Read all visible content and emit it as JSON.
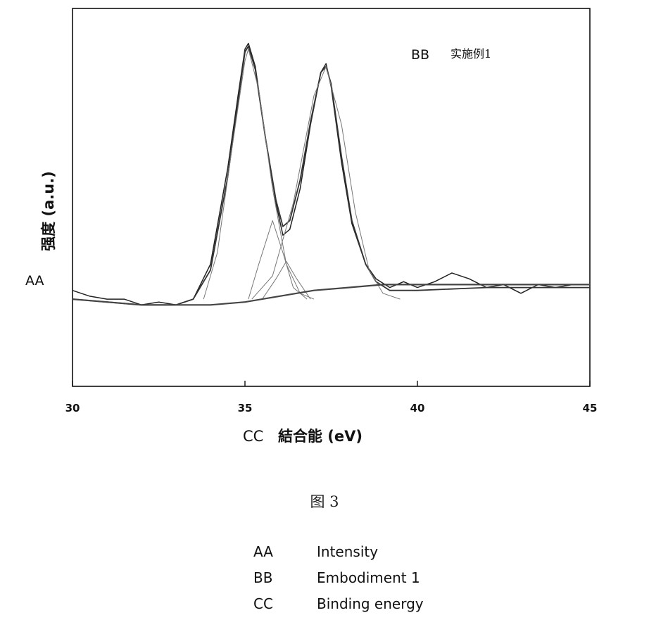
{
  "chart_data": {
    "type": "line",
    "x_axis": {
      "label_code": "CC",
      "label": "結合能 (eV)",
      "ticks": [
        30,
        35,
        40,
        45
      ],
      "range": [
        30,
        45
      ]
    },
    "y_axis": {
      "label_code": "AA",
      "label": "强度 (a.u.)",
      "ticks": []
    },
    "legend": {
      "code": "BB",
      "text": "实施例1",
      "placement": "top-right"
    },
    "series": [
      {
        "role": "measured",
        "x": [
          30,
          30.5,
          31,
          31.5,
          32,
          32.5,
          33,
          33.5,
          34,
          34.5,
          34.8,
          35.0,
          35.1,
          35.3,
          35.6,
          35.9,
          36.1,
          36.3,
          36.6,
          36.9,
          37.2,
          37.35,
          37.5,
          37.8,
          38.1,
          38.5,
          38.8,
          39.2,
          39.6,
          40.0,
          40.5,
          41.0,
          41.5,
          42.0,
          42.5,
          43.0,
          43.5,
          44.0,
          44.5,
          45.0
        ],
        "y": [
          0.03,
          0.01,
          0.0,
          0.0,
          -0.02,
          -0.01,
          -0.02,
          0.0,
          0.12,
          0.45,
          0.7,
          0.86,
          0.88,
          0.8,
          0.55,
          0.33,
          0.22,
          0.24,
          0.38,
          0.6,
          0.78,
          0.81,
          0.73,
          0.47,
          0.26,
          0.12,
          0.07,
          0.04,
          0.06,
          0.04,
          0.06,
          0.09,
          0.07,
          0.04,
          0.05,
          0.02,
          0.05,
          0.04,
          0.05,
          0.05
        ]
      },
      {
        "role": "fit",
        "x": [
          30,
          31,
          32,
          33,
          33.5,
          34,
          34.5,
          34.8,
          35.0,
          35.1,
          35.3,
          35.6,
          35.9,
          36.1,
          36.3,
          36.6,
          36.9,
          37.2,
          37.35,
          37.5,
          37.8,
          38.1,
          38.5,
          38.8,
          39.2,
          40,
          42,
          45
        ],
        "y": [
          0.0,
          -0.01,
          -0.02,
          -0.02,
          0.0,
          0.1,
          0.42,
          0.68,
          0.85,
          0.87,
          0.79,
          0.55,
          0.34,
          0.25,
          0.27,
          0.41,
          0.61,
          0.78,
          0.8,
          0.74,
          0.49,
          0.27,
          0.12,
          0.06,
          0.03,
          0.03,
          0.04,
          0.04
        ]
      },
      {
        "role": "component",
        "x": [
          33.8,
          34.2,
          34.6,
          35.0,
          35.1,
          35.4,
          35.8,
          36.2,
          36.6,
          37.0
        ],
        "y": [
          0.0,
          0.16,
          0.5,
          0.82,
          0.86,
          0.72,
          0.38,
          0.12,
          0.02,
          0.0
        ]
      },
      {
        "role": "component",
        "x": [
          35.1,
          35.4,
          35.8,
          36.1,
          36.4,
          36.8
        ],
        "y": [
          0.0,
          0.12,
          0.27,
          0.16,
          0.04,
          0.0
        ]
      },
      {
        "role": "component",
        "x": [
          35.5,
          35.9,
          36.2,
          36.5,
          36.9
        ],
        "y": [
          0.0,
          0.07,
          0.13,
          0.07,
          0.0
        ]
      },
      {
        "role": "component",
        "x": [
          35.2,
          35.8,
          36.4,
          37.0,
          37.35,
          37.8,
          38.2,
          38.6,
          39.0,
          39.5
        ],
        "y": [
          0.0,
          0.08,
          0.33,
          0.7,
          0.8,
          0.6,
          0.3,
          0.1,
          0.02,
          0.0
        ]
      },
      {
        "role": "background",
        "x": [
          30,
          31,
          32,
          33,
          34,
          35,
          36,
          37,
          38,
          39,
          40,
          42,
          45
        ],
        "y": [
          0.0,
          -0.01,
          -0.02,
          -0.02,
          -0.02,
          -0.01,
          0.01,
          0.03,
          0.04,
          0.05,
          0.05,
          0.05,
          0.05
        ]
      }
    ]
  },
  "figure_caption": "图 3",
  "key": [
    {
      "code": "AA",
      "meaning": "Intensity"
    },
    {
      "code": "BB",
      "meaning": "Embodiment 1"
    },
    {
      "code": "CC",
      "meaning": "Binding energy"
    }
  ]
}
